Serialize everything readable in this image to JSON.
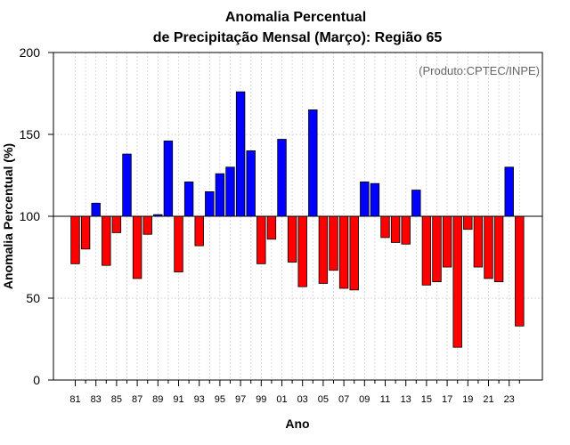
{
  "chart_data": {
    "type": "bar",
    "title_line1": "Anomalia Percentual",
    "title_line2": "de Precipitação Mensal (Março): Região 65",
    "xlabel": "Ano",
    "ylabel": "Anomalia Percentual (%)",
    "credit": "(Produto:CPTEC/INPE)",
    "baseline": 100,
    "ylim": [
      0,
      200
    ],
    "yticks": [
      "0",
      "50",
      "100",
      "150",
      "200"
    ],
    "grid": true,
    "xtick_labels": [
      "81",
      "83",
      "85",
      "87",
      "89",
      "91",
      "93",
      "95",
      "97",
      "99",
      "01",
      "03",
      "05",
      "07",
      "09",
      "11",
      "13",
      "15",
      "17",
      "19",
      "21",
      "23"
    ],
    "categories": [
      "1981",
      "1982",
      "1983",
      "1984",
      "1985",
      "1986",
      "1987",
      "1988",
      "1989",
      "1990",
      "1991",
      "1992",
      "1993",
      "1994",
      "1995",
      "1996",
      "1997",
      "1998",
      "1999",
      "2000",
      "2001",
      "2002",
      "2003",
      "2004",
      "2005",
      "2006",
      "2007",
      "2008",
      "2009",
      "2010",
      "2011",
      "2012",
      "2013",
      "2014",
      "2015",
      "2016",
      "2017",
      "2018",
      "2019",
      "2020",
      "2021",
      "2022",
      "2023",
      "2024"
    ],
    "values": [
      71,
      80,
      108,
      70,
      90,
      138,
      62,
      89,
      101,
      146,
      66,
      121,
      82,
      115,
      126,
      130,
      176,
      140,
      71,
      86,
      147,
      72,
      57,
      165,
      59,
      67,
      56,
      55,
      121,
      120,
      87,
      84,
      83,
      116,
      58,
      60,
      69,
      20,
      92,
      69,
      62,
      60,
      130,
      33
    ],
    "colors": {
      "above": "#0000ff",
      "below": "#ff0000",
      "outline": "#000000",
      "grid": "#d9d9d9"
    }
  }
}
